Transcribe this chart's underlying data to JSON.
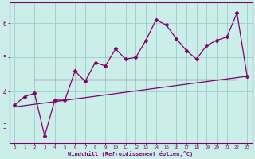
{
  "xlabel": "Windchill (Refroidissement éolien,°C)",
  "bg_color": "#cceee8",
  "grid_color": "#99cccc",
  "line_color": "#800070",
  "x_data": [
    0,
    1,
    2,
    3,
    4,
    5,
    6,
    7,
    8,
    9,
    10,
    11,
    12,
    13,
    14,
    15,
    16,
    17,
    18,
    19,
    20,
    21,
    22,
    23
  ],
  "y_main": [
    3.6,
    3.85,
    3.95,
    2.7,
    3.75,
    3.75,
    4.6,
    4.3,
    4.85,
    4.75,
    5.25,
    4.95,
    5.0,
    5.5,
    6.1,
    5.95,
    5.55,
    5.2,
    4.95,
    5.35,
    5.5,
    5.6,
    6.3,
    4.45
  ],
  "flat_line_x": [
    2,
    22
  ],
  "flat_line_y": [
    4.35,
    4.35
  ],
  "diag_line_x": [
    0,
    23
  ],
  "diag_line_y": [
    3.55,
    4.45
  ],
  "ylim": [
    2.5,
    6.6
  ],
  "xlim": [
    -0.5,
    23.5
  ],
  "yticks": [
    3,
    4,
    5,
    6
  ],
  "xticks": [
    0,
    1,
    2,
    3,
    4,
    5,
    6,
    7,
    8,
    9,
    10,
    11,
    12,
    13,
    14,
    15,
    16,
    17,
    18,
    19,
    20,
    21,
    22,
    23
  ]
}
